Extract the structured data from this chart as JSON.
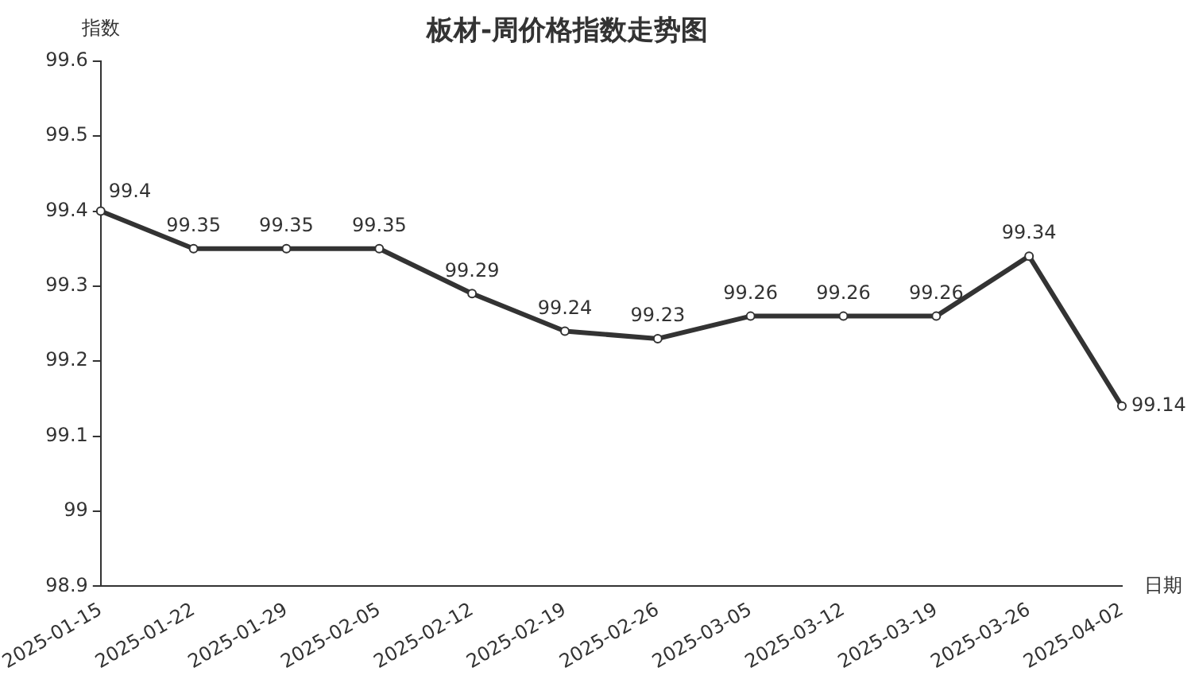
{
  "chart_data": {
    "type": "line",
    "title": "板材-周价格指数走势图",
    "xlabel": "日期",
    "ylabel": "指数",
    "categories": [
      "2025-01-15",
      "2025-01-22",
      "2025-01-29",
      "2025-02-05",
      "2025-02-12",
      "2025-02-19",
      "2025-02-26",
      "2025-03-05",
      "2025-03-12",
      "2025-03-19",
      "2025-03-26",
      "2025-04-02"
    ],
    "series": [
      {
        "color": "#333333",
        "values": [
          99.4,
          99.35,
          99.35,
          99.35,
          99.29,
          99.24,
          99.23,
          99.26,
          99.26,
          99.26,
          99.34,
          99.14
        ]
      }
    ],
    "ylim": [
      98.9,
      99.6
    ],
    "yticks": [
      98.9,
      99,
      99.1,
      99.2,
      99.3,
      99.4,
      99.5,
      99.6
    ],
    "grid": false,
    "legend": false,
    "marker": "circle",
    "line_style": "solid",
    "data_labels": true
  }
}
